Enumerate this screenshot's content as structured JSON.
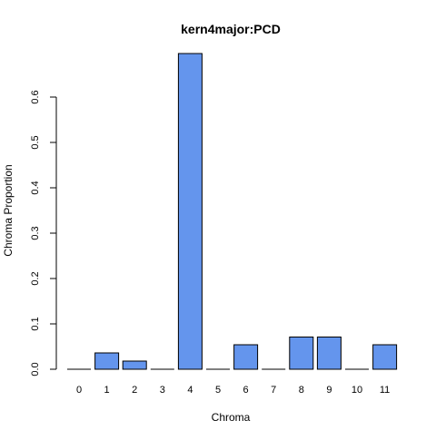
{
  "chart_data": {
    "type": "bar",
    "title": "kern4major:PCD",
    "xlabel": "Chroma",
    "ylabel": "Chroma Proportion",
    "categories": [
      "0",
      "1",
      "2",
      "3",
      "4",
      "5",
      "6",
      "7",
      "8",
      "9",
      "10",
      "11"
    ],
    "values": [
      0,
      0.036,
      0.018,
      0,
      0.696,
      0,
      0.054,
      0,
      0.071,
      0.071,
      0,
      0.054
    ],
    "y_ticks": [
      "0.0",
      "0.1",
      "0.2",
      "0.3",
      "0.4",
      "0.5",
      "0.6"
    ],
    "ylim": [
      0,
      0.696
    ],
    "grid": false,
    "bar_color": "#6495ED",
    "bar_border_color": "#000000"
  }
}
